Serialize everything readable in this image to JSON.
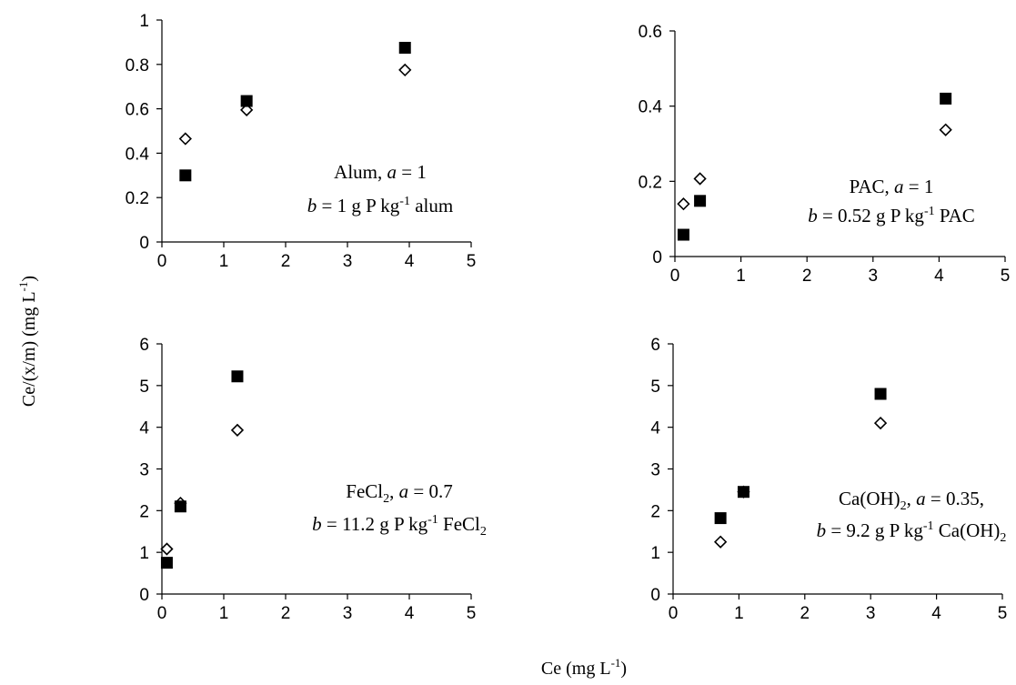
{
  "figure": {
    "ylabel": "Ce/(x/m) (mg L",
    "ylabel_sup": "-1",
    "ylabel_end": ")",
    "xlabel": "Ce (mg L",
    "xlabel_sup": "-1",
    "xlabel_end": ")"
  },
  "chart_data": [
    {
      "type": "scatter",
      "xlim": [
        0,
        5
      ],
      "ylim": [
        0,
        1
      ],
      "xticks": [
        "0",
        "1",
        "2",
        "3",
        "4",
        "5"
      ],
      "yticks": [
        "0",
        "0.2",
        "0.4",
        "0.6",
        "0.8",
        "1"
      ],
      "grid": false,
      "series": [
        {
          "marker": "square-filled",
          "color": "#000000",
          "x": [
            0.38,
            1.37,
            3.93
          ],
          "y": [
            0.3,
            0.635,
            0.875
          ]
        },
        {
          "marker": "diamond-open",
          "color": "#000000",
          "x": [
            0.38,
            1.37,
            3.93
          ],
          "y": [
            0.465,
            0.595,
            0.775
          ]
        }
      ],
      "annotation": {
        "line1": {
          "pre": "Alum,  ",
          "it": "a",
          "post": " = 1"
        },
        "line2": {
          "it": "b",
          "mid": " = 1 g P kg",
          "sup": "-1",
          "post": " alum"
        }
      }
    },
    {
      "type": "scatter",
      "xlim": [
        0,
        5
      ],
      "ylim": [
        0,
        0.6
      ],
      "xticks": [
        "0",
        "1",
        "2",
        "3",
        "4",
        "5"
      ],
      "yticks": [
        "0",
        "0.2",
        "0.4",
        "0.6"
      ],
      "grid": false,
      "series": [
        {
          "marker": "square-filled",
          "color": "#000000",
          "x": [
            0.13,
            0.38,
            4.1
          ],
          "y": [
            0.058,
            0.148,
            0.42
          ]
        },
        {
          "marker": "diamond-open",
          "color": "#000000",
          "x": [
            0.13,
            0.38,
            4.1
          ],
          "y": [
            0.14,
            0.207,
            0.337
          ]
        }
      ],
      "annotation": {
        "line1": {
          "pre": "PAC, ",
          "it": "a",
          "post": " = 1"
        },
        "line2": {
          "it": "b",
          "mid": " = 0.52 g P kg",
          "sup": "-1",
          "post": " PAC"
        }
      }
    },
    {
      "type": "scatter",
      "xlim": [
        0,
        5
      ],
      "ylim": [
        0,
        6
      ],
      "xticks": [
        "0",
        "1",
        "2",
        "3",
        "4",
        "5"
      ],
      "yticks": [
        "0",
        "1",
        "2",
        "3",
        "4",
        "5",
        "6"
      ],
      "grid": false,
      "series": [
        {
          "marker": "square-filled",
          "color": "#000000",
          "x": [
            0.08,
            0.3,
            1.22
          ],
          "y": [
            0.75,
            2.1,
            5.22
          ]
        },
        {
          "marker": "diamond-open",
          "color": "#000000",
          "x": [
            0.08,
            0.3,
            1.22
          ],
          "y": [
            1.08,
            2.18,
            3.93
          ]
        }
      ],
      "annotation": {
        "line1": {
          "pre": "FeCl",
          "sub": "2",
          "pre2": ", ",
          "it": "a",
          "post": " = 0.7"
        },
        "line2": {
          "it": "b",
          "mid": " = 11.2 g P kg",
          "sup": "-1",
          "post": " FeCl",
          "sub": "2"
        }
      }
    },
    {
      "type": "scatter",
      "xlim": [
        0,
        5
      ],
      "ylim": [
        0,
        6
      ],
      "xticks": [
        "0",
        "1",
        "2",
        "3",
        "4",
        "5"
      ],
      "yticks": [
        "0",
        "1",
        "2",
        "3",
        "4",
        "5",
        "6"
      ],
      "grid": false,
      "series": [
        {
          "marker": "square-filled",
          "color": "#000000",
          "x": [
            0.72,
            1.07,
            3.15
          ],
          "y": [
            1.82,
            2.45,
            4.8
          ]
        },
        {
          "marker": "diamond-open",
          "color": "#000000",
          "x": [
            0.72,
            1.07,
            3.15
          ],
          "y": [
            1.25,
            2.45,
            4.1
          ]
        }
      ],
      "annotation": {
        "line1": {
          "pre": "Ca(OH)",
          "sub": "2",
          "pre2": ", ",
          "it": "a",
          "post": " = 0.35,"
        },
        "line2": {
          "it": "b",
          "mid": " = 9.2 g P kg",
          "sup": "-1",
          "post": " Ca(OH)",
          "sub": "2"
        }
      }
    }
  ]
}
